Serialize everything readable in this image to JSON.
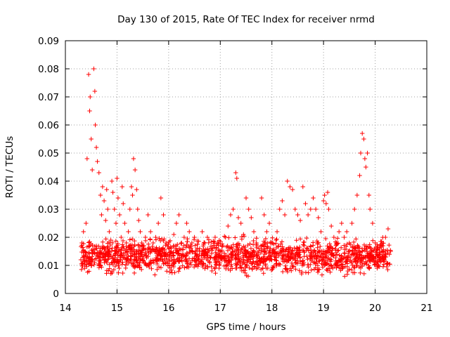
{
  "chart_data": {
    "type": "scatter",
    "title": "Day 130 of 2015, Rate Of TEC Index for receiver nrmd",
    "xlabel": "GPS time / hours",
    "ylabel": "ROTI / TECUs",
    "xlim": [
      14,
      21
    ],
    "ylim": [
      0,
      0.09
    ],
    "xticks": [
      "14",
      "15",
      "16",
      "17",
      "18",
      "19",
      "20",
      "21"
    ],
    "yticks": [
      "0",
      "0.01",
      "0.02",
      "0.03",
      "0.04",
      "0.05",
      "0.06",
      "0.07",
      "0.08",
      "0.09"
    ],
    "grid": true,
    "marker": "+",
    "color": "#ff0000",
    "series": [
      {
        "name": "ROTI",
        "x": [
          14.3,
          14.32,
          14.35,
          14.38,
          14.4,
          14.42,
          14.45,
          14.47,
          14.48,
          14.5,
          14.52,
          14.55,
          14.57,
          14.58,
          14.6,
          14.62,
          14.65,
          14.68,
          14.7,
          14.72,
          14.75,
          14.78,
          14.8,
          14.82,
          14.85,
          14.88,
          14.9,
          14.92,
          14.95,
          14.98,
          15.0,
          15.02,
          15.05,
          15.08,
          15.1,
          15.12,
          15.15,
          15.18,
          15.2,
          15.22,
          15.25,
          15.28,
          15.3,
          15.32,
          15.35,
          15.38,
          15.4,
          15.42,
          15.45,
          15.48,
          15.5,
          15.55,
          15.6,
          15.65,
          15.7,
          15.75,
          15.8,
          15.85,
          15.9,
          15.95,
          16.0,
          16.05,
          16.1,
          16.15,
          16.2,
          16.25,
          16.3,
          16.35,
          16.4,
          16.45,
          16.5,
          16.55,
          16.6,
          16.65,
          16.7,
          16.75,
          16.8,
          16.85,
          16.9,
          16.95,
          17.0,
          17.05,
          17.1,
          17.15,
          17.2,
          17.25,
          17.3,
          17.32,
          17.35,
          17.4,
          17.45,
          17.5,
          17.55,
          17.6,
          17.65,
          17.7,
          17.75,
          17.8,
          17.85,
          17.9,
          17.95,
          18.0,
          18.05,
          18.1,
          18.15,
          18.2,
          18.25,
          18.3,
          18.35,
          18.4,
          18.45,
          18.5,
          18.55,
          18.6,
          18.65,
          18.7,
          18.75,
          18.8,
          18.85,
          18.9,
          18.95,
          19.0,
          19.02,
          19.05,
          19.08,
          19.1,
          19.15,
          19.2,
          19.25,
          19.3,
          19.35,
          19.4,
          19.45,
          19.5,
          19.55,
          19.6,
          19.65,
          19.7,
          19.72,
          19.75,
          19.78,
          19.8,
          19.82,
          19.85,
          19.88,
          19.9,
          19.95,
          20.0,
          20.05,
          20.1,
          20.15,
          20.2,
          20.25,
          20.3
        ],
        "y": [
          0.012,
          0.018,
          0.022,
          0.015,
          0.025,
          0.048,
          0.078,
          0.065,
          0.07,
          0.055,
          0.044,
          0.08,
          0.072,
          0.06,
          0.052,
          0.047,
          0.043,
          0.035,
          0.028,
          0.038,
          0.033,
          0.026,
          0.037,
          0.03,
          0.022,
          0.019,
          0.04,
          0.036,
          0.03,
          0.025,
          0.041,
          0.034,
          0.028,
          0.02,
          0.038,
          0.032,
          0.025,
          0.018,
          0.015,
          0.022,
          0.03,
          0.038,
          0.035,
          0.048,
          0.044,
          0.037,
          0.03,
          0.026,
          0.022,
          0.018,
          0.016,
          0.02,
          0.028,
          0.022,
          0.018,
          0.02,
          0.025,
          0.034,
          0.028,
          0.018,
          0.016,
          0.015,
          0.021,
          0.025,
          0.028,
          0.018,
          0.02,
          0.025,
          0.022,
          0.018,
          0.02,
          0.014,
          0.016,
          0.022,
          0.018,
          0.02,
          0.013,
          0.016,
          0.02,
          0.018,
          0.015,
          0.017,
          0.02,
          0.024,
          0.028,
          0.03,
          0.043,
          0.041,
          0.027,
          0.025,
          0.021,
          0.034,
          0.03,
          0.027,
          0.022,
          0.018,
          0.016,
          0.034,
          0.028,
          0.022,
          0.025,
          0.018,
          0.015,
          0.022,
          0.03,
          0.033,
          0.028,
          0.04,
          0.038,
          0.037,
          0.03,
          0.028,
          0.026,
          0.038,
          0.032,
          0.028,
          0.03,
          0.034,
          0.03,
          0.027,
          0.022,
          0.033,
          0.035,
          0.032,
          0.036,
          0.03,
          0.024,
          0.02,
          0.018,
          0.022,
          0.025,
          0.02,
          0.022,
          0.018,
          0.025,
          0.03,
          0.035,
          0.042,
          0.05,
          0.057,
          0.055,
          0.048,
          0.045,
          0.05,
          0.035,
          0.03,
          0.025,
          0.018,
          0.016,
          0.014,
          0.017,
          0.02,
          0.023,
          0.015
        ]
      }
    ],
    "band": {
      "x_start": 14.3,
      "x_end": 20.3,
      "y_low": 0.005,
      "y_high": 0.02,
      "typical": 0.012
    }
  }
}
